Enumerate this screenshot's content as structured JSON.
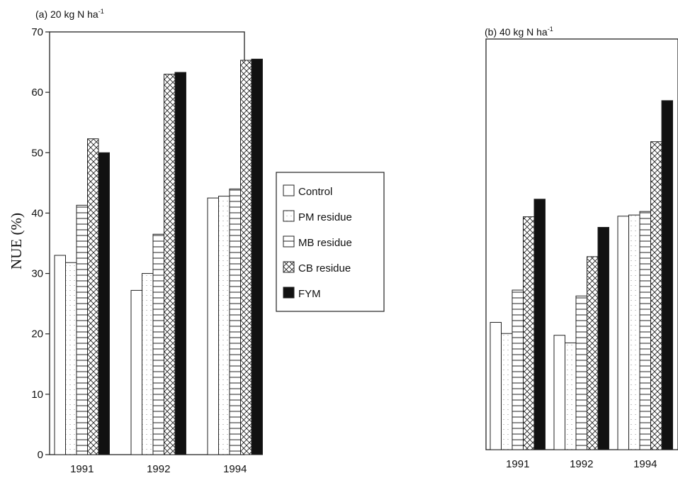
{
  "chart_data": [
    {
      "type": "bar",
      "title": "(a) 20 kg N ha",
      "title_sup": "-1",
      "ylabel": "NUE (%)",
      "xlabel": "",
      "ylim": [
        0,
        70
      ],
      "yticks": [
        0,
        10,
        20,
        30,
        40,
        50,
        60,
        70
      ],
      "categories": [
        "1991",
        "1992",
        "1994"
      ],
      "series": [
        {
          "name": "Control",
          "values": [
            33,
            27.2,
            42.5
          ]
        },
        {
          "name": "PM residue",
          "values": [
            31.8,
            30,
            42.8
          ]
        },
        {
          "name": "MB residue",
          "values": [
            41.3,
            36.5,
            44
          ]
        },
        {
          "name": "CB residue",
          "values": [
            52.3,
            63,
            65.3
          ]
        },
        {
          "name": "FYM",
          "values": [
            50,
            63.3,
            65.5
          ]
        }
      ]
    },
    {
      "type": "bar",
      "title": "(b) 40 kg N ha",
      "title_sup": "-1",
      "ylim": [
        0,
        70
      ],
      "categories": [
        "1991",
        "1992",
        "1994"
      ],
      "series": [
        {
          "name": "Control",
          "values": [
            21.7,
            19.5,
            39.8
          ]
        },
        {
          "name": "PM residue",
          "values": [
            19.8,
            18.2,
            40
          ]
        },
        {
          "name": "MB residue",
          "values": [
            27.2,
            26.2,
            40.6
          ]
        },
        {
          "name": "CB residue",
          "values": [
            39.7,
            32.9,
            52.5
          ]
        },
        {
          "name": "FYM",
          "values": [
            42.7,
            37.9,
            59.5
          ]
        }
      ]
    }
  ],
  "legend": {
    "items": [
      "Control",
      "PM residue",
      "MB residue",
      "CB residue",
      "FYM"
    ],
    "placement": "center between panels"
  },
  "colors": {
    "bar_outline": "#222222",
    "fym_fill": "#111111"
  }
}
